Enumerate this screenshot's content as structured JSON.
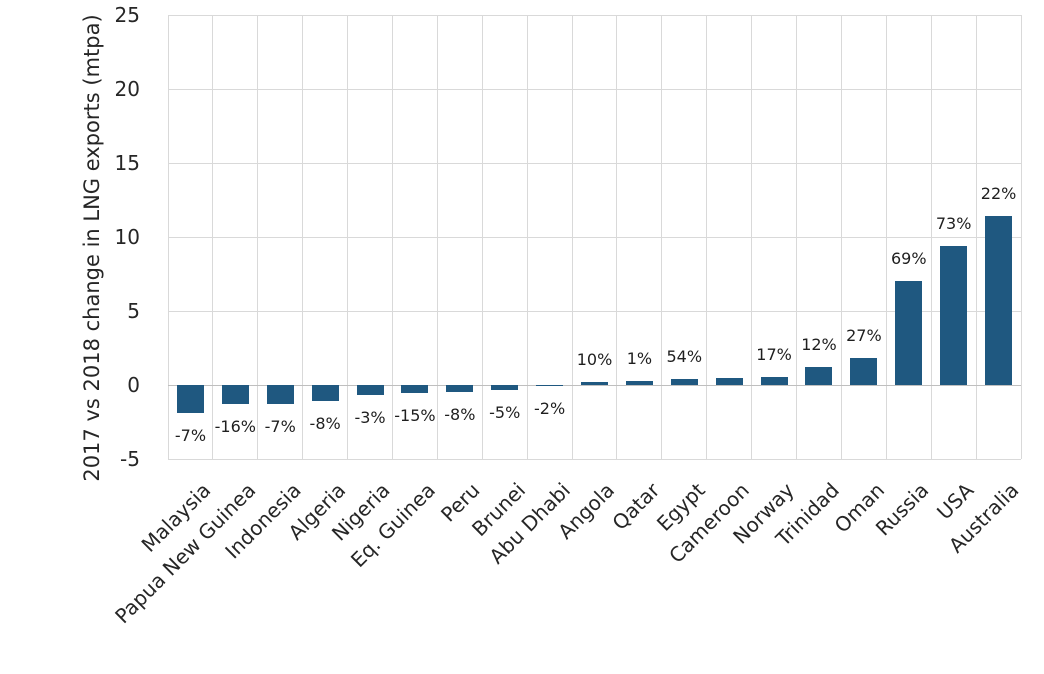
{
  "chart_data": {
    "type": "bar",
    "title": "",
    "xlabel": "",
    "ylabel": "2017 vs 2018 change in LNG exports (mtpa)",
    "ylim": [
      -5,
      25
    ],
    "ytick_step": 5,
    "yticks": [
      25,
      20,
      15,
      10,
      5,
      0,
      -5
    ],
    "grid": true,
    "legend": false,
    "bar_color": "#1f5880",
    "gridline_color": "#d9d9d9",
    "axis_line_color": "#bfbfbf",
    "text_color": "#262626",
    "categories": [
      "Malaysia",
      "Papua New Guinea",
      "Indonesia",
      "Algeria",
      "Nigeria",
      "Eq. Guinea",
      "Peru",
      "Brunei",
      "Abu Dhabi",
      "Angola",
      "Qatar",
      "Egypt",
      "Cameroon",
      "Norway",
      "Trinidad",
      "Oman",
      "Russia",
      "USA",
      "Australia"
    ],
    "values": [
      -1.9,
      -1.3,
      -1.3,
      -1.05,
      -0.65,
      -0.55,
      -0.45,
      -0.35,
      -0.1,
      0.2,
      0.3,
      0.4,
      0.45,
      0.55,
      1.25,
      1.8,
      7.0,
      9.4,
      11.4
    ],
    "data_labels": [
      "-7%",
      "-16%",
      "-7%",
      "-8%",
      "-3%",
      "-15%",
      "-8%",
      "-5%",
      "-2%",
      "10%",
      "1%",
      "54%",
      null,
      "17%",
      "12%",
      "27%",
      "69%",
      "73%",
      "22%"
    ]
  }
}
